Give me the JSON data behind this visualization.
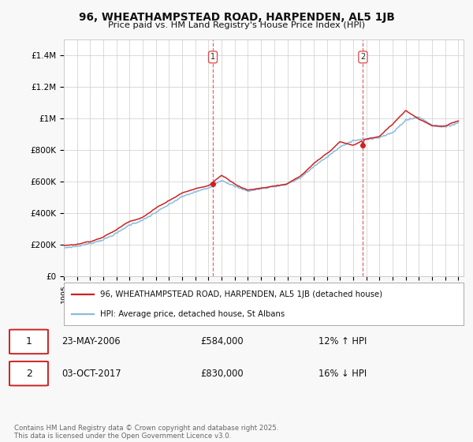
{
  "title_line1": "96, WHEATHAMPSTEAD ROAD, HARPENDEN, AL5 1JB",
  "title_line2": "Price paid vs. HM Land Registry's House Price Index (HPI)",
  "ylim": [
    0,
    1500000
  ],
  "yticks": [
    0,
    200000,
    400000,
    600000,
    800000,
    1000000,
    1200000,
    1400000
  ],
  "ytick_labels": [
    "£0",
    "£200K",
    "£400K",
    "£600K",
    "£800K",
    "£1M",
    "£1.2M",
    "£1.4M"
  ],
  "hpi_color": "#88bbdd",
  "price_color": "#cc2222",
  "sale1_date": "23-MAY-2006",
  "sale1_price": 584000,
  "sale2_date": "03-OCT-2017",
  "sale2_price": 830000,
  "sale1_hpi_pct": "12% ↑ HPI",
  "sale2_hpi_pct": "16% ↓ HPI",
  "legend_red": "96, WHEATHAMPSTEAD ROAD, HARPENDEN, AL5 1JB (detached house)",
  "legend_blue": "HPI: Average price, detached house, St Albans",
  "footer": "Contains HM Land Registry data © Crown copyright and database right 2025.\nThis data is licensed under the Open Government Licence v3.0.",
  "bg_color": "#f8f8f8",
  "plot_bg_color": "#ffffff",
  "grid_color": "#cccccc",
  "dashed_line_color": "#dd4444",
  "years_annual": [
    1995,
    1996,
    1997,
    1998,
    1999,
    2000,
    2001,
    2002,
    2003,
    2004,
    2005,
    2006,
    2007,
    2008,
    2009,
    2010,
    2011,
    2012,
    2013,
    2014,
    2015,
    2016,
    2017,
    2018,
    2019,
    2020,
    2021,
    2022,
    2023,
    2024,
    2025
  ],
  "hpi_annual": [
    180000,
    190000,
    208000,
    232000,
    272000,
    326000,
    355000,
    405000,
    455000,
    505000,
    535000,
    560000,
    610000,
    570000,
    540000,
    555000,
    570000,
    585000,
    625000,
    695000,
    755000,
    820000,
    860000,
    870000,
    880000,
    910000,
    990000,
    1010000,
    960000,
    945000,
    975000
  ],
  "prop_annual": [
    195000,
    205000,
    225000,
    255000,
    298000,
    355000,
    385000,
    440000,
    490000,
    540000,
    565000,
    584000,
    650000,
    600000,
    560000,
    575000,
    590000,
    605000,
    648000,
    720000,
    782000,
    855000,
    830000,
    870000,
    885000,
    960000,
    1050000,
    1000000,
    960000,
    955000,
    985000
  ]
}
